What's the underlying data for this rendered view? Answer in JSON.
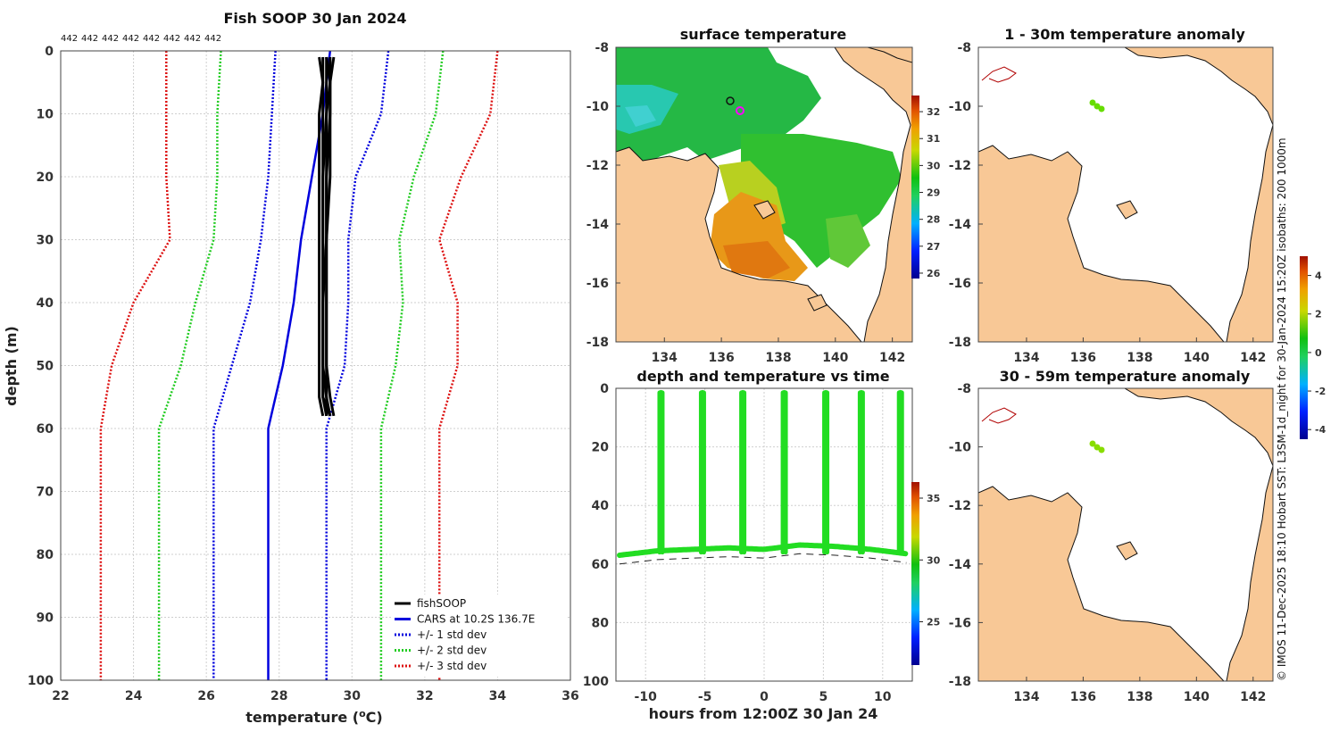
{
  "profile_chart": {
    "title": "Fish SOOP 30 Jan 2024",
    "xlabel_main": "temperature (",
    "xlabel_sup": "o",
    "xlabel_tail": "C)",
    "ylabel": "depth (m)",
    "xlim": [
      22,
      36
    ],
    "ylim": [
      0,
      100
    ],
    "xticks": [
      "22",
      "24",
      "26",
      "28",
      "30",
      "32",
      "34",
      "36"
    ],
    "yticks": [
      "0",
      "10",
      "20",
      "30",
      "40",
      "50",
      "60",
      "70",
      "80",
      "90",
      "100"
    ],
    "profile_counts": [
      "442",
      "442",
      "442",
      "442",
      "442",
      "442",
      "442",
      "442"
    ],
    "legend": [
      {
        "label": "fishSOOP",
        "color": "#000000",
        "style": "solid"
      },
      {
        "label": "CARS at 10.2S 136.7E",
        "color": "#0000dd",
        "style": "solid"
      },
      {
        "label": "+/- 1 std dev",
        "color": "#0000dd",
        "style": "dotted"
      },
      {
        "label": "+/- 2 std dev",
        "color": "#22cc22",
        "style": "dotted"
      },
      {
        "label": "+/- 3 std dev",
        "color": "#dd1111",
        "style": "dotted"
      }
    ],
    "series": {
      "depths": [
        0,
        10,
        20,
        30,
        40,
        50,
        60,
        100
      ],
      "cars": [
        29.4,
        29.2,
        28.9,
        28.6,
        28.4,
        28.1,
        27.7,
        27.7
      ],
      "sd1_minus": [
        27.9,
        27.8,
        27.7,
        27.5,
        27.2,
        26.7,
        26.2,
        26.2
      ],
      "sd1_plus": [
        31.0,
        30.8,
        30.1,
        29.9,
        29.9,
        29.8,
        29.3,
        29.3
      ],
      "sd2_minus": [
        26.4,
        26.3,
        26.3,
        26.2,
        25.7,
        25.3,
        24.7,
        24.7
      ],
      "sd2_plus": [
        32.5,
        32.3,
        31.7,
        31.3,
        31.4,
        31.2,
        30.8,
        30.8
      ],
      "sd3_minus": [
        24.9,
        24.9,
        24.9,
        25.0,
        24.0,
        23.4,
        23.1,
        23.1
      ],
      "sd3_plus": [
        34.0,
        33.8,
        33.0,
        32.4,
        32.9,
        32.9,
        32.4,
        32.4
      ],
      "fishsoop_depths": [
        1,
        5,
        10,
        20,
        30,
        40,
        50,
        55,
        58
      ],
      "fishsoop_profiles": [
        [
          29.2,
          29.2,
          29.1,
          29.1,
          29.1,
          29.1,
          29.1,
          29.1,
          29.2
        ],
        [
          29.3,
          29.3,
          29.3,
          29.2,
          29.2,
          29.2,
          29.2,
          29.2,
          29.3
        ],
        [
          29.4,
          29.4,
          29.3,
          29.3,
          29.3,
          29.3,
          29.3,
          29.3,
          29.4
        ],
        [
          29.1,
          29.2,
          29.2,
          29.2,
          29.2,
          29.2,
          29.2,
          29.3,
          29.3
        ],
        [
          29.3,
          29.4,
          29.4,
          29.3,
          29.3,
          29.2,
          29.2,
          29.2,
          29.4
        ],
        [
          29.5,
          29.4,
          29.4,
          29.4,
          29.3,
          29.3,
          29.3,
          29.4,
          29.5
        ]
      ]
    }
  },
  "sst_map": {
    "title": "surface temperature",
    "xticks": [
      "134",
      "136",
      "138",
      "140",
      "142"
    ],
    "yticks": [
      "-8",
      "-10",
      "-12",
      "-14",
      "-16",
      "-18"
    ],
    "colorbar_ticks": [
      "32",
      "31",
      "30",
      "29",
      "28",
      "27",
      "26"
    ],
    "colorbar_range": [
      25.8,
      32.6
    ]
  },
  "time_chart": {
    "title": "depth and temperature vs time",
    "xlabel": "hours from 12:00Z 30 Jan 24",
    "xticks": [
      "-10",
      "-5",
      "0",
      "5",
      "10"
    ],
    "yticks": [
      "0",
      "20",
      "40",
      "60",
      "80",
      "100"
    ],
    "xlim": [
      -12.5,
      12.5
    ],
    "ylim": [
      0,
      100
    ],
    "colorbar_ticks": [
      "35",
      "30",
      "25"
    ],
    "colorbar_range": [
      21.5,
      36.3
    ],
    "cast_hours": [
      -8.7,
      -5.2,
      -1.8,
      1.7,
      5.2,
      8.2,
      11.5
    ],
    "bottom_hours": [
      -12.2,
      -9,
      -6,
      -3,
      0,
      3,
      6,
      9,
      12
    ],
    "bottom_depths": [
      59,
      57.5,
      57,
      56.5,
      57,
      55.5,
      56,
      57,
      58.5
    ]
  },
  "anom_map_top": {
    "title": "1 - 30m temperature anomaly",
    "xticks": [
      "134",
      "136",
      "138",
      "140",
      "142"
    ],
    "yticks": [
      "-8",
      "-10",
      "-12",
      "-14",
      "-16",
      "-18"
    ]
  },
  "anom_map_bottom": {
    "title": "30 - 59m temperature anomaly",
    "xticks": [
      "134",
      "136",
      "138",
      "140",
      "142"
    ],
    "yticks": [
      "-8",
      "-10",
      "-12",
      "-14",
      "-16",
      "-18"
    ]
  },
  "anom_colorbar": {
    "ticks": [
      "4",
      "2",
      "0",
      "-2",
      "-4"
    ],
    "range": [
      -4.5,
      5.0
    ]
  },
  "credit": "© IMOS 11-Dec-2025 18:10 Hobart SST: L3SM-1d_night for 30-Jan-2024 15:20Z isobaths: 200  1000m",
  "colors": {
    "land": "#f8c896",
    "cars": "#0000dd",
    "std2": "#22cc22",
    "std3": "#dd1111",
    "fish": "#000000",
    "time_points": "#22dd22"
  }
}
